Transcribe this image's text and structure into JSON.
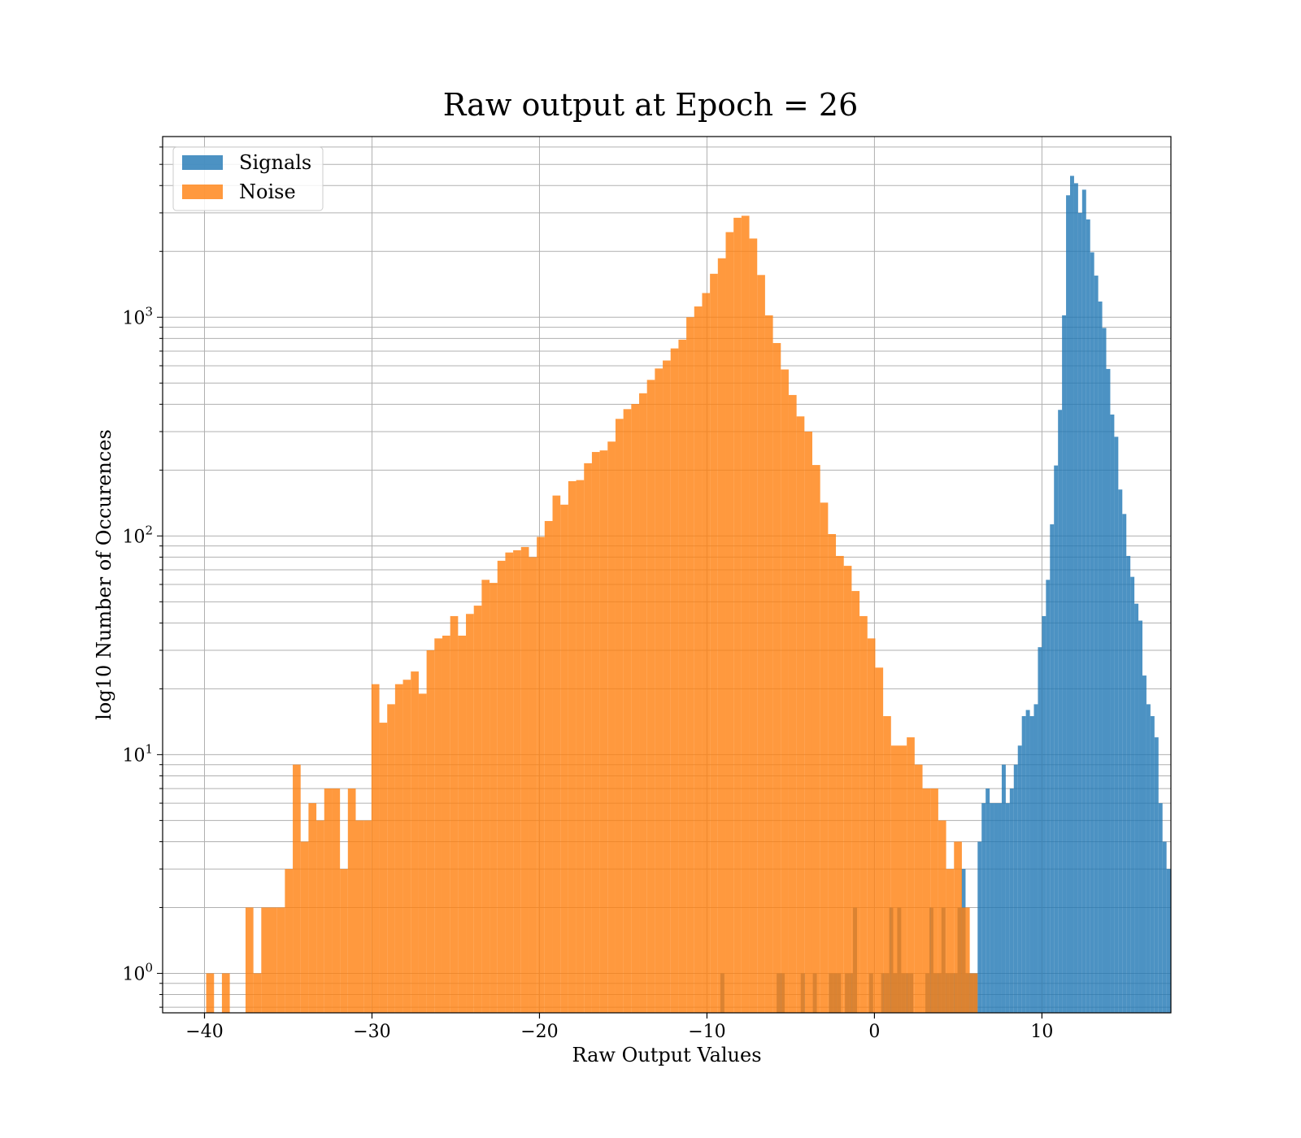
{
  "chart_data": {
    "type": "histogram",
    "title": "Raw output at Epoch = 26",
    "xlabel": "Raw Output Values",
    "ylabel": "log10 Number of Occurences",
    "xlim": [
      -42.5,
      17.7
    ],
    "ylim": [
      0.66,
      6700
    ],
    "yscale": "log",
    "grid": true,
    "legend_position": "upper-left",
    "x_ticks": [
      -40,
      -30,
      -20,
      -10,
      0,
      10
    ],
    "x_tick_labels": [
      "−40",
      "−30",
      "−20",
      "−10",
      "0",
      "10"
    ],
    "y_ticks": [
      {
        "value": 1,
        "base": "10",
        "exp": "0"
      },
      {
        "value": 10,
        "base": "10",
        "exp": "1"
      },
      {
        "value": 100,
        "base": "10",
        "exp": "2"
      },
      {
        "value": 1000,
        "base": "10",
        "exp": "3"
      }
    ],
    "series": [
      {
        "name": "Signals",
        "color": "#1f77b4",
        "alpha": 0.8,
        "bin_start": -9.2,
        "bin_width": 0.24,
        "values": [
          1,
          0,
          0,
          0,
          0,
          0,
          0,
          0,
          0,
          0,
          0,
          0,
          0,
          0,
          1,
          1,
          0,
          0,
          0,
          0,
          1,
          0,
          0,
          1,
          0,
          0,
          0,
          1,
          1,
          1,
          0,
          1,
          1,
          2,
          0,
          0,
          0,
          1,
          0,
          0,
          1,
          1,
          2,
          1,
          2,
          1,
          1,
          1,
          0,
          0,
          0,
          1,
          2,
          1,
          1,
          2,
          1,
          1,
          1,
          2,
          3,
          1,
          1,
          1,
          4,
          6,
          7,
          6,
          6,
          6,
          9,
          6,
          7,
          9,
          11,
          15,
          16,
          15,
          17,
          31,
          43,
          63,
          113,
          210,
          377,
          1020,
          3610,
          4430,
          4100,
          3000,
          3830,
          2800,
          1980,
          1550,
          1180,
          893,
          580,
          359,
          284,
          163,
          126,
          81,
          65,
          49,
          41,
          23,
          17,
          15,
          12,
          6,
          4,
          3
        ],
        "_note": "index i -> left edge bin_start + i*bin_width"
      },
      {
        "name": "Noise",
        "color": "#ff7f0e",
        "alpha": 0.8,
        "bin_start": -39.9,
        "bin_width": 0.47,
        "values": [
          1,
          0,
          1,
          0,
          0,
          2,
          1,
          2,
          2,
          2,
          3,
          9,
          4,
          6,
          5,
          7,
          7,
          3,
          7,
          5,
          5,
          21,
          14,
          17,
          21,
          22,
          24,
          19,
          30,
          34,
          35,
          43,
          35,
          44,
          48,
          63,
          61,
          77,
          84,
          86,
          89,
          80,
          99,
          117,
          153,
          139,
          178,
          180,
          215,
          242,
          246,
          270,
          343,
          380,
          401,
          449,
          517,
          583,
          634,
          720,
          790,
          1000,
          1120,
          1290,
          1580,
          1860,
          2450,
          2850,
          2910,
          2290,
          1560,
          1020,
          762,
          577,
          441,
          352,
          300,
          211,
          142,
          102,
          81,
          73,
          56,
          43,
          34,
          25,
          15,
          11,
          11,
          12,
          9,
          7,
          7,
          5,
          3,
          4,
          2,
          1
        ]
      }
    ]
  }
}
